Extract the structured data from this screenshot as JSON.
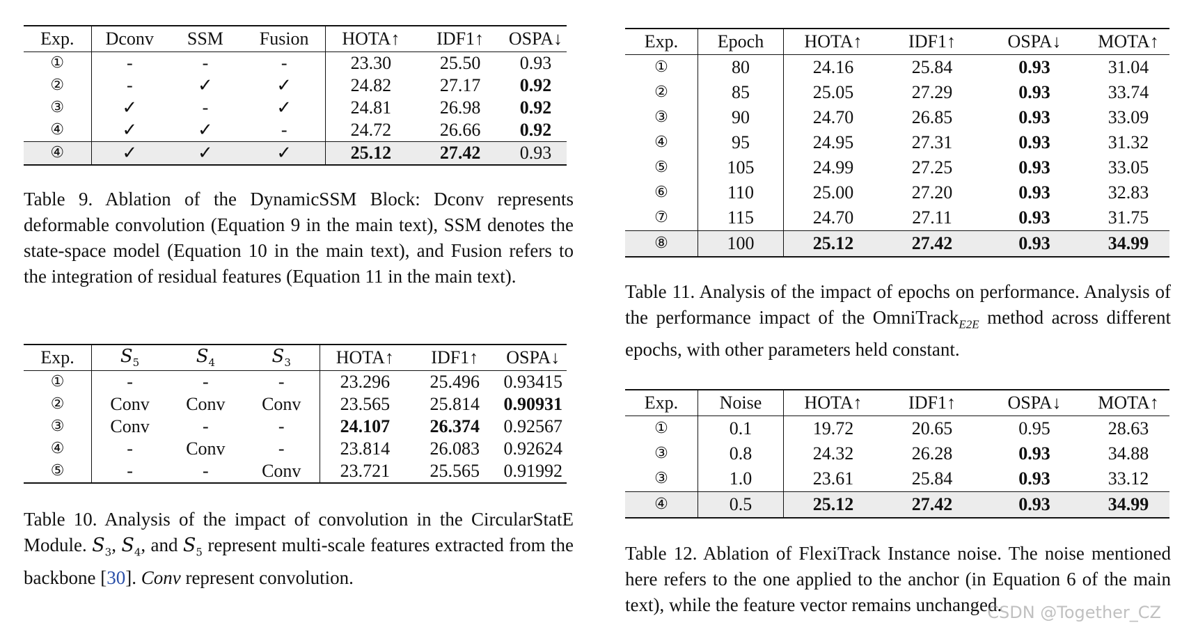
{
  "table9": {
    "headers": [
      "Exp.",
      "Dconv",
      "SSM",
      "Fusion",
      "HOTA↑",
      "IDF1↑",
      "OSPA↓"
    ],
    "rows": [
      [
        "①",
        "-",
        "-",
        "-",
        "23.30",
        "25.50",
        "0.93"
      ],
      [
        "②",
        "-",
        "✓",
        "✓",
        "24.82",
        "27.17",
        "0.92"
      ],
      [
        "③",
        "✓",
        "-",
        "✓",
        "24.81",
        "26.98",
        "0.92"
      ],
      [
        "④",
        "✓",
        "✓",
        "-",
        "24.72",
        "26.66",
        "0.92"
      ],
      [
        "④",
        "✓",
        "✓",
        "✓",
        "25.12",
        "27.42",
        "0.93"
      ]
    ],
    "caption": "Table 9.  Ablation of the DynamicSSM Block: Dconv represents deformable convolution (Equation 9 in the main text), SSM denotes the state-space model (Equation 10 in the main text), and Fusion refers to the integration of residual features (Equation 11 in the main text)."
  },
  "table10": {
    "headers": [
      "Exp.",
      "S5",
      "S4",
      "S3",
      "HOTA↑",
      "IDF1↑",
      "OSPA↓"
    ],
    "header_symbol": "S",
    "header_subs": [
      "5",
      "4",
      "3"
    ],
    "rows": [
      [
        "①",
        "-",
        "-",
        "-",
        "23.296",
        "25.496",
        "0.93415"
      ],
      [
        "②",
        "Conv",
        "Conv",
        "Conv",
        "23.565",
        "25.814",
        "0.90931"
      ],
      [
        "③",
        "Conv",
        "-",
        "-",
        "24.107",
        "26.374",
        "0.92567"
      ],
      [
        "④",
        "-",
        "Conv",
        "-",
        "23.814",
        "26.083",
        "0.92624"
      ],
      [
        "⑤",
        "-",
        "-",
        "Conv",
        "23.721",
        "25.565",
        "0.91992"
      ]
    ],
    "caption_a": "Table 10.  Analysis of the impact of convolution in the CircularStatE Module. ",
    "caption_s3": "S",
    "caption_s3_sub": "3",
    "caption_sep1": ", ",
    "caption_s4": "S",
    "caption_s4_sub": "4",
    "caption_sep2": ", and ",
    "caption_s5": "S",
    "caption_s5_sub": "5",
    "caption_b": " represent multi-scale features extracted from the backbone [",
    "caption_ref": "30",
    "caption_c": "]. ",
    "caption_ital": "Conv",
    "caption_d": " represent convolution."
  },
  "table11": {
    "headers": [
      "Exp.",
      "Epoch",
      "HOTA↑",
      "IDF1↑",
      "OSPA↓",
      "MOTA↑"
    ],
    "rows": [
      [
        "①",
        "80",
        "24.16",
        "25.84",
        "0.93",
        "31.04"
      ],
      [
        "②",
        "85",
        "25.05",
        "27.29",
        "0.93",
        "33.74"
      ],
      [
        "③",
        "90",
        "24.70",
        "26.85",
        "0.93",
        "33.09"
      ],
      [
        "④",
        "95",
        "24.95",
        "27.31",
        "0.93",
        "31.32"
      ],
      [
        "⑤",
        "105",
        "24.99",
        "27.25",
        "0.93",
        "33.05"
      ],
      [
        "⑥",
        "110",
        "25.00",
        "27.20",
        "0.93",
        "32.83"
      ],
      [
        "⑦",
        "115",
        "24.70",
        "27.11",
        "0.93",
        "31.75"
      ],
      [
        "⑧",
        "100",
        "25.12",
        "27.42",
        "0.93",
        "34.99"
      ]
    ],
    "caption_a": "Table 11. Analysis of the impact of epochs on performance. Analysis of the performance impact of the OmniTrack",
    "caption_sub": "E2E",
    "caption_b": " method across different epochs, with other parameters held constant."
  },
  "table12": {
    "headers": [
      "Exp.",
      "Noise",
      "HOTA↑",
      "IDF1↑",
      "OSPA↓",
      "MOTA↑"
    ],
    "rows": [
      [
        "①",
        "0.1",
        "19.72",
        "20.65",
        "0.95",
        "28.63"
      ],
      [
        "③",
        "0.8",
        "24.32",
        "26.28",
        "0.93",
        "34.88"
      ],
      [
        "③",
        "1.0",
        "23.61",
        "25.84",
        "0.93",
        "33.12"
      ],
      [
        "④",
        "0.5",
        "25.12",
        "27.42",
        "0.93",
        "34.99"
      ]
    ],
    "caption": "Table 12.  Ablation of FlexiTrack Instance noise. The noise mentioned here refers to the one applied to the anchor (in Equation 6 of the main text), while the feature vector remains unchanged."
  },
  "watermark": "CSDN @Together_CZ"
}
